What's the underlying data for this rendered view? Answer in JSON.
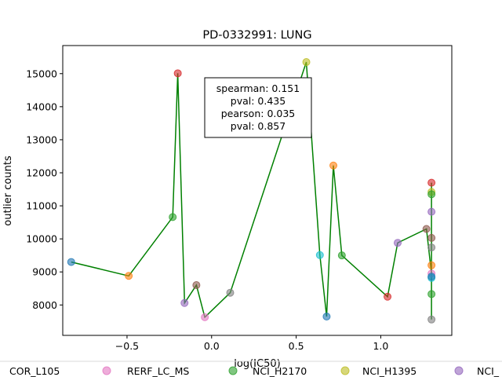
{
  "chart_data": {
    "type": "line",
    "title": "PD-0332991: LUNG",
    "xlabel": "log(IC50)",
    "ylabel": "outlier counts",
    "xlim": [
      -0.88,
      1.42
    ],
    "ylim": [
      7080,
      15850
    ],
    "xticks": [
      -0.5,
      0.0,
      0.5,
      1.0
    ],
    "xtick_labels": [
      "−0.5",
      "0.0",
      "0.5",
      "1.0"
    ],
    "yticks": [
      8000,
      9000,
      10000,
      11000,
      12000,
      13000,
      14000,
      15000
    ],
    "ytick_labels": [
      "8000",
      "9000",
      "10000",
      "11000",
      "12000",
      "13000",
      "14000",
      "15000"
    ],
    "line_color": "#008000",
    "points": [
      {
        "x": -0.83,
        "y": 9300,
        "color": "#1f77b4"
      },
      {
        "x": -0.49,
        "y": 8880,
        "color": "#ff7f0e"
      },
      {
        "x": -0.23,
        "y": 10660,
        "color": "#2ca02c"
      },
      {
        "x": -0.2,
        "y": 15010,
        "color": "#d62728"
      },
      {
        "x": -0.16,
        "y": 8060,
        "color": "#9467bd"
      },
      {
        "x": -0.09,
        "y": 8600,
        "color": "#8c564b"
      },
      {
        "x": -0.04,
        "y": 7630,
        "color": "#e377c2"
      },
      {
        "x": 0.11,
        "y": 8370,
        "color": "#7f7f7f"
      },
      {
        "x": 0.56,
        "y": 15350,
        "color": "#bcbd22"
      },
      {
        "x": 0.64,
        "y": 9510,
        "color": "#17becf"
      },
      {
        "x": 0.68,
        "y": 7650,
        "color": "#1f77b4"
      },
      {
        "x": 0.72,
        "y": 12220,
        "color": "#ff7f0e"
      },
      {
        "x": 0.77,
        "y": 9500,
        "color": "#2ca02c"
      },
      {
        "x": 1.04,
        "y": 8250,
        "color": "#d62728"
      },
      {
        "x": 1.1,
        "y": 9880,
        "color": "#9467bd"
      },
      {
        "x": 1.27,
        "y": 10300,
        "color": "#8c564b"
      },
      {
        "x": 1.3,
        "y": 8950,
        "color": "#e377c2"
      },
      {
        "x": 1.3,
        "y": 7560,
        "color": "#7f7f7f"
      },
      {
        "x": 1.3,
        "y": 11420,
        "color": "#bcbd22"
      },
      {
        "x": 1.3,
        "y": 8820,
        "color": "#17becf"
      },
      {
        "x": 1.3,
        "y": 11700,
        "color": "#d62728"
      },
      {
        "x": 1.3,
        "y": 11350,
        "color": "#2ca02c"
      },
      {
        "x": 1.3,
        "y": 9200,
        "color": "#ff7f0e"
      },
      {
        "x": 1.3,
        "y": 10820,
        "color": "#9467bd"
      },
      {
        "x": 1.3,
        "y": 10030,
        "color": "#8c564b"
      },
      {
        "x": 1.3,
        "y": 9740,
        "color": "#7f7f7f"
      },
      {
        "x": 1.3,
        "y": 8860,
        "color": "#1f77b4"
      },
      {
        "x": 1.3,
        "y": 8330,
        "color": "#2ca02c"
      }
    ],
    "annotation": [
      "spearman: 0.151",
      "pval: 0.435",
      "pearson: 0.035",
      "pval: 0.857"
    ],
    "legend": {
      "placement": "bottom",
      "items": [
        {
          "label": "COR_L105",
          "color": "#1f77b4"
        },
        {
          "label": "RERF_LC_MS",
          "color": "#e377c2"
        },
        {
          "label": "NCI_H2170",
          "color": "#2ca02c"
        },
        {
          "label": "NCI_H1395",
          "color": "#bcbd22"
        },
        {
          "label": "NCI_",
          "color": "#9467bd"
        }
      ]
    }
  }
}
